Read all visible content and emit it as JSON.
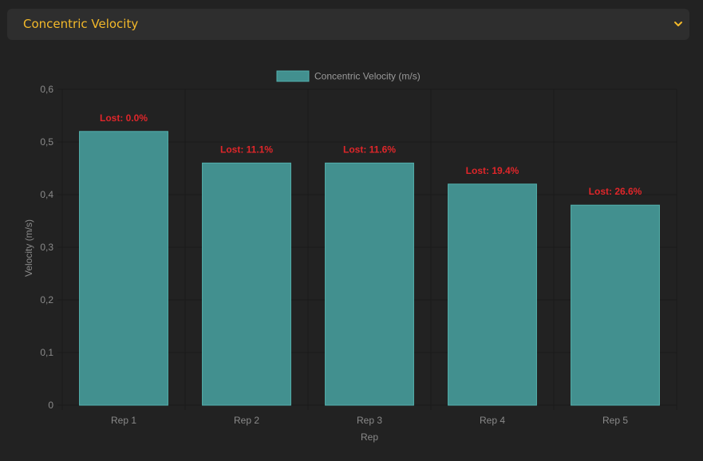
{
  "metric_select": {
    "selected": "Concentric Velocity",
    "icon": "chevron-down-icon"
  },
  "colors": {
    "bar": "#42908f",
    "bar_border": "#53b0ad",
    "label": "#e0262a",
    "select_text": "#f3b92a"
  },
  "chart_data": {
    "type": "bar",
    "categories": [
      "Rep 1",
      "Rep 2",
      "Rep 3",
      "Rep 4",
      "Rep 5"
    ],
    "series": [
      {
        "name": "Concentric Velocity (m/s)",
        "values": [
          0.52,
          0.46,
          0.46,
          0.42,
          0.38
        ]
      }
    ],
    "data_labels": [
      "Lost: 0.0%",
      "Lost: 11.1%",
      "Lost: 11.6%",
      "Lost: 19.4%",
      "Lost: 26.6%"
    ],
    "xlabel": "Rep",
    "ylabel": "Velocity (m/s)",
    "ylim": [
      0,
      0.6
    ],
    "yticks": [
      "0",
      "0,1",
      "0,2",
      "0,3",
      "0,4",
      "0,5",
      "0,6"
    ],
    "grid": true,
    "legend_position": "top-center"
  }
}
